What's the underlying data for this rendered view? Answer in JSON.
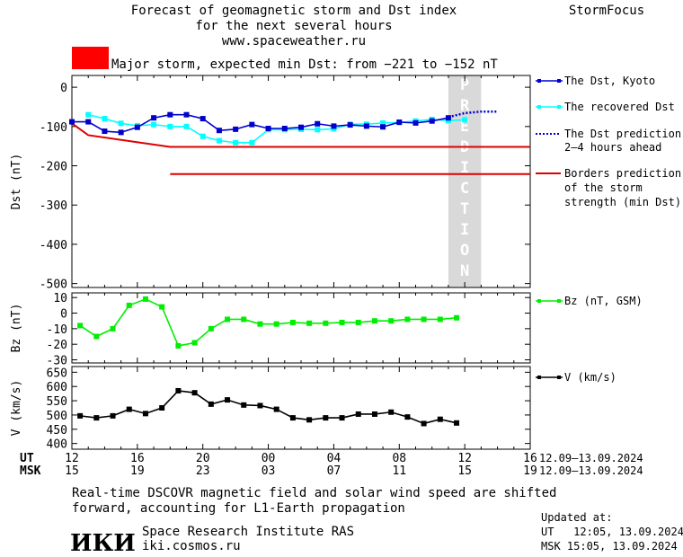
{
  "header": {
    "title_line1": "Forecast of geomagnetic storm and Dst index",
    "title_line2": "for the next several hours",
    "title_line3": "www.spaceweather.ru",
    "brand": "StormFocus",
    "alert_text": "Major storm, expected min Dst: from −221 to −152 nT",
    "alert_color": "#ff0000"
  },
  "legend": {
    "dst_kyoto": "The Dst, Kyoto",
    "recovered_dst": "The recovered Dst",
    "prediction_line1": "The Dst prediction",
    "prediction_line2": "2–4 hours ahead",
    "borders_line1": "Borders prediction",
    "borders_line2": "of the storm",
    "borders_line3": "strength (min Dst)",
    "bz": "Bz (nT, GSM)",
    "v": "V (km/s)"
  },
  "prediction_band_text": "PREDICTION",
  "time_axis": {
    "ut_label": "UT",
    "msk_label": "MSK",
    "ut_ticks": [
      "12",
      "16",
      "20",
      "00",
      "04",
      "08",
      "12",
      "16"
    ],
    "msk_ticks": [
      "15",
      "19",
      "23",
      "03",
      "07",
      "11",
      "15",
      "19"
    ],
    "date_range": "12.09–13.09.2024"
  },
  "footer": {
    "note_line1": "Real-time DSCOVR magnetic field and solar wind speed are shifted",
    "note_line2": "forward, accounting for L1-Earth propagation",
    "logo_text": "ИКИ",
    "institute": "Space Research Institute RAS",
    "site": "iki.cosmos.ru",
    "updated_label": "Updated at:",
    "updated_ut": "UT   12:05, 13.09.2024",
    "updated_msk": "MSK 15:05, 13.09.2024"
  },
  "colors": {
    "dst": "#0000cc",
    "recovered": "#00ffff",
    "borders": "#dd0000",
    "bz": "#00ee00",
    "v": "#000000",
    "prediction_band": "#d9d9d9"
  },
  "chart_data": [
    {
      "type": "line",
      "panel": "dst",
      "ylabel": "Dst (nT)",
      "x_unit": "hours UT from 12:00, 12.09.2024",
      "xlim": [
        0,
        28
      ],
      "ylim": [
        -510,
        30
      ],
      "yticks": [
        0,
        -100,
        -200,
        -300,
        -400,
        -500
      ],
      "prediction_band_x": [
        23,
        25
      ],
      "series": [
        {
          "name": "The Dst, Kyoto",
          "marker": "square",
          "x": [
            0,
            1,
            2,
            3,
            4,
            5,
            6,
            7,
            8,
            9,
            10,
            11,
            12,
            13,
            14,
            15,
            16,
            17,
            18,
            19,
            20,
            21,
            22,
            23
          ],
          "y": [
            -88,
            -88,
            -112,
            -115,
            -102,
            -78,
            -70,
            -70,
            -80,
            -110,
            -107,
            -95,
            -105,
            -105,
            -102,
            -93,
            -99,
            -96,
            -99,
            -101,
            -89,
            -91,
            -86,
            -78
          ]
        },
        {
          "name": "The recovered Dst",
          "marker": "square",
          "x": [
            1,
            2,
            3,
            4,
            5,
            6,
            7,
            8,
            9,
            10,
            11,
            12,
            13,
            14,
            15,
            16,
            17,
            18,
            19,
            20,
            21,
            22,
            23,
            24
          ],
          "y": [
            -70,
            -80,
            -92,
            -98,
            -95,
            -100,
            -100,
            -125,
            -136,
            -141,
            -141,
            -108,
            -108,
            -107,
            -108,
            -106,
            -94,
            -94,
            -91,
            -90,
            -86,
            -82,
            -85,
            -83
          ]
        },
        {
          "name": "The Dst prediction 2–4 hours ahead",
          "style": "dotted",
          "x": [
            23,
            24,
            25,
            26
          ],
          "y": [
            -76,
            -66,
            -62,
            -62
          ]
        }
      ],
      "borders": [
        {
          "name": "upper",
          "x": [
            0,
            1,
            6,
            28
          ],
          "y": [
            -92,
            -122,
            -152,
            -152
          ]
        },
        {
          "name": "lower",
          "x": [
            6,
            28
          ],
          "y": [
            -221,
            -221
          ]
        }
      ]
    },
    {
      "type": "line",
      "panel": "bz",
      "ylabel": "Bz (nT)",
      "xlim": [
        0,
        28
      ],
      "ylim": [
        -32,
        13
      ],
      "yticks": [
        10,
        0,
        -10,
        -20,
        -30
      ],
      "series": [
        {
          "name": "Bz (nT, GSM)",
          "marker": "square",
          "x": [
            0.5,
            1.5,
            2.5,
            3.5,
            4.5,
            5.5,
            6.5,
            7.5,
            8.5,
            9.5,
            10.5,
            11.5,
            12.5,
            13.5,
            14.5,
            15.5,
            16.5,
            17.5,
            18.5,
            19.5,
            20.5,
            21.5,
            22.5,
            23.5
          ],
          "y": [
            -8,
            -15,
            -10,
            5,
            9,
            4,
            -21,
            -19,
            -10,
            -4,
            -4,
            -7,
            -7,
            -6,
            -6.5,
            -6.5,
            -6,
            -6,
            -5,
            -5,
            -4,
            -4,
            -4,
            -3
          ]
        }
      ]
    },
    {
      "type": "line",
      "panel": "v",
      "ylabel": "V (km/s)",
      "xlim": [
        0,
        28
      ],
      "ylim": [
        380,
        670
      ],
      "yticks": [
        650,
        600,
        550,
        500,
        450,
        400
      ],
      "series": [
        {
          "name": "V (km/s)",
          "marker": "square",
          "x": [
            0.5,
            1.5,
            2.5,
            3.5,
            4.5,
            5.5,
            6.5,
            7.5,
            8.5,
            9.5,
            10.5,
            11.5,
            12.5,
            13.5,
            14.5,
            15.5,
            16.5,
            17.5,
            18.5,
            19.5,
            20.5,
            21.5,
            22.5,
            23.5
          ],
          "y": [
            497,
            490,
            497,
            520,
            505,
            525,
            585,
            578,
            538,
            553,
            535,
            533,
            520,
            490,
            483,
            490,
            490,
            503,
            503,
            510,
            493,
            470,
            485,
            472
          ]
        }
      ]
    }
  ]
}
